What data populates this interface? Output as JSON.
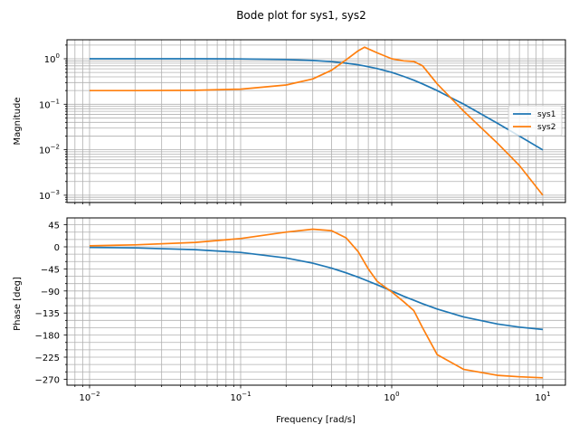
{
  "figure": {
    "title": "Bode plot for sys1, sys2",
    "background": "#ffffff"
  },
  "chart_data": [
    {
      "type": "line",
      "panel": "magnitude",
      "title": "Bode plot for sys1, sys2",
      "xlabel": "",
      "ylabel": "Magnitude",
      "xscale": "log",
      "yscale": "log",
      "xlim": [
        0.0071,
        14
      ],
      "ylim": [
        0.00075,
        2.6
      ],
      "yticks": [
        0.001,
        0.01,
        0.1,
        1
      ],
      "ytick_labels": [
        "10^-3",
        "10^-2",
        "10^-1",
        "10^0"
      ],
      "grid": true,
      "grid_minor": true,
      "legend": {
        "position": "center right",
        "entries": [
          "sys1",
          "sys2"
        ]
      },
      "x": [
        0.01,
        0.02,
        0.05,
        0.1,
        0.2,
        0.3,
        0.4,
        0.5,
        0.6,
        0.66,
        0.8,
        1.0,
        1.2,
        1.4,
        1.6,
        2.0,
        3.0,
        5.0,
        7.0,
        10.0
      ],
      "series": [
        {
          "name": "sys1",
          "color": "#1f77b4",
          "values": [
            1.0,
            1.0,
            0.998,
            0.99,
            0.962,
            0.917,
            0.862,
            0.8,
            0.735,
            0.697,
            0.61,
            0.5,
            0.41,
            0.338,
            0.28,
            0.2,
            0.1,
            0.0385,
            0.02,
            0.0099
          ]
        },
        {
          "name": "sys2",
          "color": "#ff7f0e",
          "values": [
            0.2,
            0.2,
            0.202,
            0.215,
            0.265,
            0.36,
            0.56,
            0.95,
            1.5,
            1.8,
            1.35,
            1.0,
            0.9,
            0.87,
            0.7,
            0.28,
            0.07,
            0.014,
            0.0045,
            0.001
          ]
        }
      ]
    },
    {
      "type": "line",
      "panel": "phase",
      "xlabel": "Frequency [rad/s]",
      "ylabel": "Phase [deg]",
      "xscale": "log",
      "yscale": "linear",
      "xlim": [
        0.0071,
        14
      ],
      "ylim": [
        -285,
        54
      ],
      "yticks": [
        45,
        0,
        -45,
        -90,
        -135,
        -180,
        -225,
        -270
      ],
      "xticks": [
        0.01,
        0.1,
        1,
        10
      ],
      "xtick_labels": [
        "10^-2",
        "10^-1",
        "10^0",
        "10^1"
      ],
      "grid": true,
      "grid_minor": true,
      "x": [
        0.01,
        0.02,
        0.05,
        0.1,
        0.2,
        0.3,
        0.4,
        0.5,
        0.6,
        0.7,
        0.8,
        1.0,
        1.2,
        1.4,
        1.6,
        2.0,
        3.0,
        5.0,
        7.0,
        10.0
      ],
      "series": [
        {
          "name": "sys1",
          "color": "#1f77b4",
          "values": [
            -1.1,
            -2.3,
            -5.7,
            -11.4,
            -22.6,
            -33.4,
            -43.6,
            -53.1,
            -61.9,
            -70.0,
            -77.3,
            -90.0,
            -100.8,
            -109.0,
            -116.0,
            -126.9,
            -143.1,
            -157.4,
            -163.7,
            -168.6
          ]
        },
        {
          "name": "sys2",
          "color": "#ff7f0e",
          "values": [
            2,
            4,
            9,
            17,
            30,
            36,
            33,
            18,
            -10,
            -45,
            -70,
            -92,
            -112,
            -130,
            -165,
            -220,
            -250,
            -262,
            -265,
            -267
          ]
        }
      ]
    }
  ]
}
